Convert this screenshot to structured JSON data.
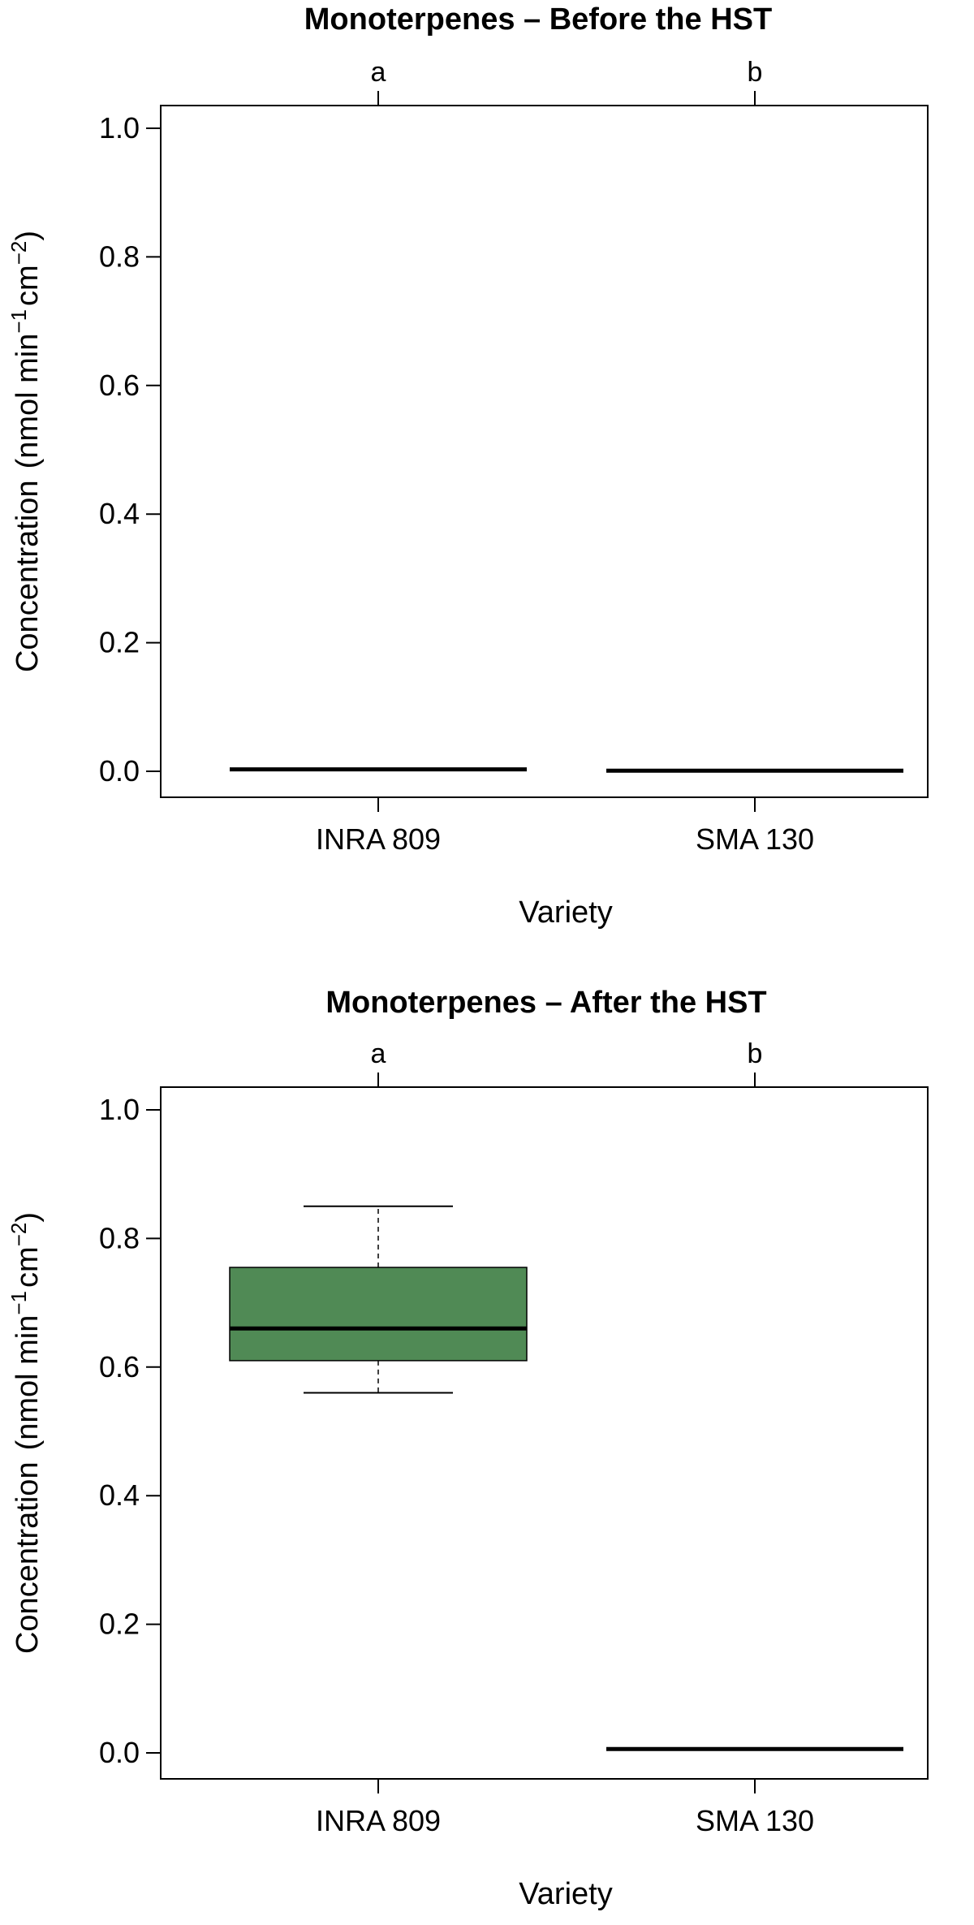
{
  "chart_data": [
    {
      "type": "boxplot",
      "title": "Monoterpenes – Before the HST",
      "xlabel": "Variety",
      "ylabel_main": "Concentration",
      "ylabel_unit_parts": [
        "(nmol  min",
        "−1",
        "cm",
        "−2",
        ")"
      ],
      "categories": [
        "INRA 809",
        "SMA 130"
      ],
      "letters": [
        "a",
        "b"
      ],
      "ylim": [
        0,
        1.04
      ],
      "yticks": [
        "0.0",
        "0.2",
        "0.4",
        "0.6",
        "0.8",
        "1.0"
      ],
      "boxes": [
        {
          "name": "INRA 809",
          "min": 0.0,
          "q1": 0.0,
          "median": 0.003,
          "q3": 0.005,
          "max": 0.005
        },
        {
          "name": "SMA 130",
          "min": 0.0,
          "q1": 0.0,
          "median": 0.001,
          "q3": 0.002,
          "max": 0.002
        }
      ],
      "fill": "#508a55"
    },
    {
      "type": "boxplot",
      "title": "Monoterpenes – After the HST",
      "xlabel": "Variety",
      "ylabel_main": "Concentration",
      "ylabel_unit_parts": [
        "(nmol  min",
        "−1",
        "cm",
        "−2",
        ")"
      ],
      "categories": [
        "INRA 809",
        "SMA 130"
      ],
      "letters": [
        "a",
        "b"
      ],
      "ylim": [
        0,
        1.04
      ],
      "yticks": [
        "0.0",
        "0.2",
        "0.4",
        "0.6",
        "0.8",
        "1.0"
      ],
      "boxes": [
        {
          "name": "INRA 809",
          "min": 0.56,
          "q1": 0.61,
          "median": 0.66,
          "q3": 0.755,
          "max": 0.85
        },
        {
          "name": "SMA 130",
          "min": 0.004,
          "q1": 0.005,
          "median": 0.006,
          "q3": 0.007,
          "max": 0.008
        }
      ],
      "fill": "#508a55"
    }
  ]
}
